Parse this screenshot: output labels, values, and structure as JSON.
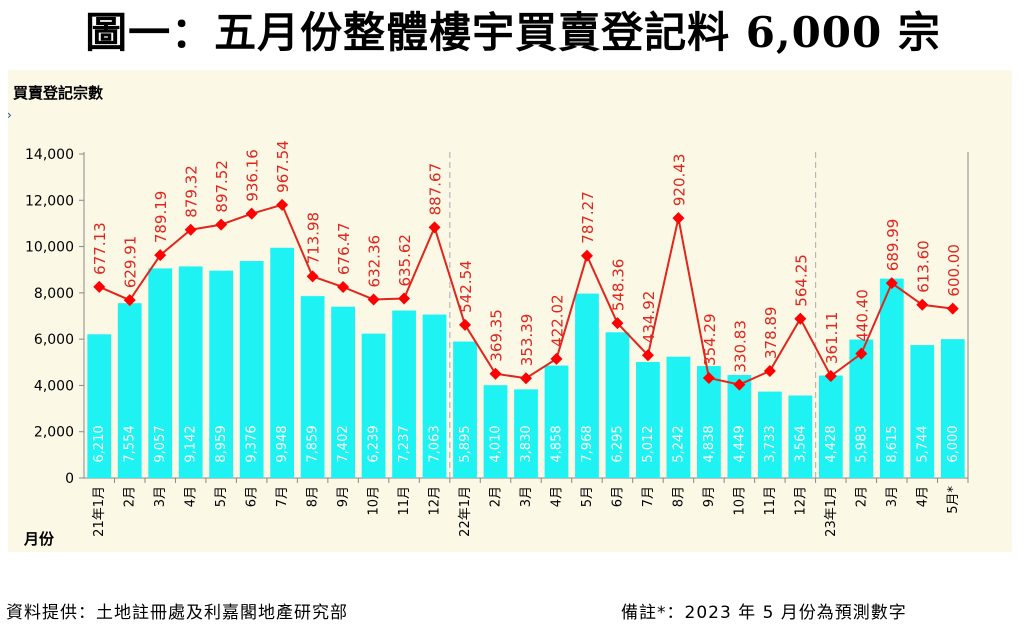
{
  "title": "圖一：五月份整體樓宇買賣登記料 6,000 宗",
  "footer": {
    "source": "資料提供：土地註冊處及利嘉閣地產研究部",
    "note": "備註*：2023 年 5 月份為預測數字"
  },
  "colors": {
    "bars": "#1ff2f2",
    "line": "#e0261d",
    "marker": "#ff0000",
    "line_label": "#e0261d",
    "bar_label": "#ffffff",
    "panel_bg": "#fbf8e6",
    "divider": "#b7b7b7"
  },
  "chart_data": {
    "type": "bar",
    "ylabel": "買賣登記宗數",
    "xlabel": "月份",
    "ylim": [
      0,
      14000
    ],
    "yticks": [
      "0",
      "2,000",
      "4,000",
      "6,000",
      "8,000",
      "10,000",
      "12,000",
      "14,000"
    ],
    "grid": false,
    "categories": [
      "21年1月",
      "2月",
      "3月",
      "4月",
      "5月",
      "6月",
      "7月",
      "8月",
      "9月",
      "10月",
      "11月",
      "12月",
      "22年1月",
      "2月",
      "3月",
      "4月",
      "5月",
      "6月",
      "7月",
      "8月",
      "9月",
      "10月",
      "11月",
      "12月",
      "23年1月",
      "2月",
      "3月",
      "4月",
      "5月*"
    ],
    "series": [
      {
        "type": "bar",
        "values": [
          6210,
          7554,
          9057,
          9142,
          8959,
          9376,
          9948,
          7859,
          7402,
          6239,
          7237,
          7063,
          5895,
          4010,
          3830,
          4858,
          7968,
          6295,
          5012,
          5242,
          4838,
          4449,
          3733,
          3564,
          4428,
          5983,
          8615,
          5744,
          6000
        ],
        "labels": [
          "6,210",
          "7,554",
          "9,057",
          "9,142",
          "8,959",
          "9,376",
          "9,948",
          "7,859",
          "7,402",
          "6,239",
          "7,237",
          "7,063",
          "5,895",
          "4,010",
          "3,830",
          "4,858",
          "7,968",
          "6,295",
          "5,012",
          "5,242",
          "4,838",
          "4,449",
          "3,733",
          "3,564",
          "4,428",
          "5,983",
          "8,615",
          "5,744",
          "6,000"
        ]
      },
      {
        "type": "line",
        "values": [
          677.13,
          629.91,
          789.19,
          879.32,
          897.52,
          936.16,
          967.54,
          713.98,
          676.47,
          632.36,
          635.62,
          887.67,
          542.54,
          369.35,
          353.39,
          422.02,
          787.27,
          548.36,
          434.92,
          920.43,
          354.29,
          330.83,
          378.89,
          564.25,
          361.11,
          440.4,
          689.99,
          613.6,
          600.0
        ],
        "labels": [
          "677.13",
          "629.91",
          "789.19",
          "879.32",
          "897.52",
          "936.16",
          "967.54",
          "713.98",
          "676.47",
          "632.36",
          "635.62",
          "887.67",
          "542.54",
          "369.35",
          "353.39",
          "422.02",
          "787.27",
          "548.36",
          "434.92",
          "920.43",
          "354.29",
          "330.83",
          "378.89",
          "564.25",
          "361.11",
          "440.40",
          "689.99",
          "613.60",
          "600.00"
        ]
      }
    ],
    "year_dividers_after": [
      11,
      23
    ]
  }
}
